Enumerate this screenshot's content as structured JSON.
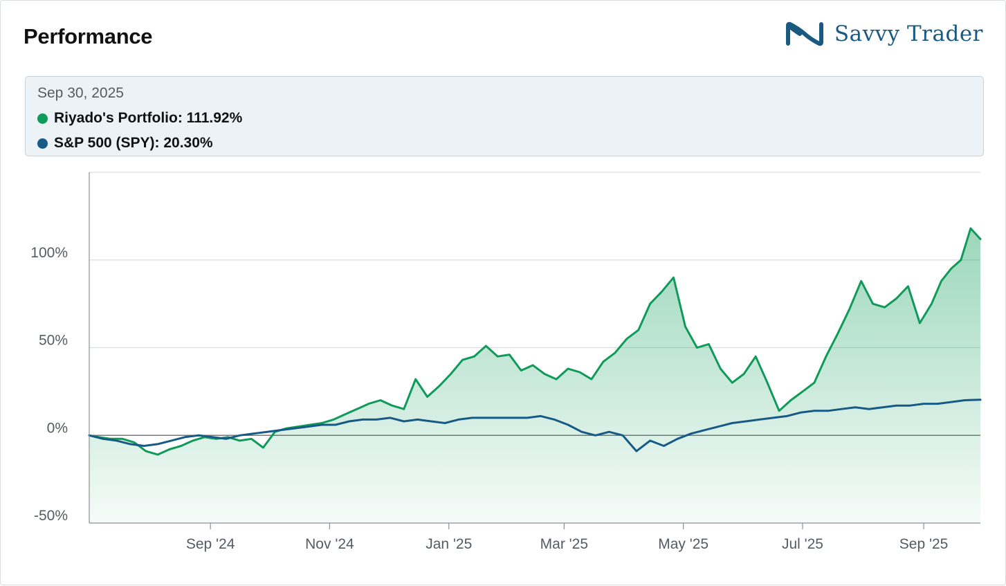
{
  "header": {
    "title": "Performance",
    "brand": "Savvy Trader"
  },
  "tooltip": {
    "date": "Sep 30, 2025",
    "rows": [
      {
        "label": "Riyado's Portfolio: 111.92%"
      },
      {
        "label": "S&P 500 (SPY): 20.30%"
      }
    ]
  },
  "colors": {
    "portfolio": "#0f9a5a",
    "benchmark": "#175a86",
    "fill": "#12a05e",
    "grid": "#d9dde2",
    "zero_line": "#777777",
    "brand": "#1b5a80"
  },
  "chart_data": {
    "type": "area",
    "x_axis": {
      "type": "date",
      "range": [
        "2024-07-01",
        "2025-09-30"
      ],
      "ticks": [
        {
          "date": "2024-09-01",
          "label": "Sep '24"
        },
        {
          "date": "2024-11-01",
          "label": "Nov '24"
        },
        {
          "date": "2025-01-01",
          "label": "Jan '25"
        },
        {
          "date": "2025-03-01",
          "label": "Mar '25"
        },
        {
          "date": "2025-05-01",
          "label": "May '25"
        },
        {
          "date": "2025-07-01",
          "label": "Jul '25"
        },
        {
          "date": "2025-09-01",
          "label": "Sep '25"
        }
      ]
    },
    "y_axis": {
      "range": [
        -50,
        150
      ],
      "ticks": [
        {
          "value": 100,
          "label": "100%"
        },
        {
          "value": 50,
          "label": "50%"
        },
        {
          "value": 0,
          "label": "0%"
        },
        {
          "value": -50,
          "label": "-50%"
        }
      ],
      "grid": true
    },
    "legend": "top (tooltip panel)",
    "series": [
      {
        "name": "Riyado's Portfolio",
        "unit": "%",
        "points": [
          [
            "2024-07-01",
            0
          ],
          [
            "2024-07-06",
            -1
          ],
          [
            "2024-07-12",
            -2
          ],
          [
            "2024-07-18",
            -2
          ],
          [
            "2024-07-24",
            -4
          ],
          [
            "2024-07-30",
            -9
          ],
          [
            "2024-08-05",
            -11
          ],
          [
            "2024-08-11",
            -8
          ],
          [
            "2024-08-17",
            -6
          ],
          [
            "2024-08-23",
            -3
          ],
          [
            "2024-08-29",
            -1
          ],
          [
            "2024-09-04",
            -2
          ],
          [
            "2024-09-10",
            -1
          ],
          [
            "2024-09-16",
            -3
          ],
          [
            "2024-09-22",
            -2
          ],
          [
            "2024-09-28",
            -7
          ],
          [
            "2024-10-04",
            2
          ],
          [
            "2024-10-10",
            4
          ],
          [
            "2024-10-16",
            5
          ],
          [
            "2024-10-22",
            6
          ],
          [
            "2024-10-28",
            7
          ],
          [
            "2024-11-03",
            9
          ],
          [
            "2024-11-09",
            12
          ],
          [
            "2024-11-15",
            15
          ],
          [
            "2024-11-21",
            18
          ],
          [
            "2024-11-27",
            20
          ],
          [
            "2024-12-03",
            17
          ],
          [
            "2024-12-09",
            15
          ],
          [
            "2024-12-15",
            32
          ],
          [
            "2024-12-21",
            22
          ],
          [
            "2024-12-27",
            28
          ],
          [
            "2025-01-02",
            35
          ],
          [
            "2025-01-08",
            43
          ],
          [
            "2025-01-14",
            45
          ],
          [
            "2025-01-20",
            51
          ],
          [
            "2025-01-26",
            45
          ],
          [
            "2025-02-01",
            46
          ],
          [
            "2025-02-07",
            37
          ],
          [
            "2025-02-13",
            40
          ],
          [
            "2025-02-19",
            35
          ],
          [
            "2025-02-25",
            32
          ],
          [
            "2025-03-03",
            38
          ],
          [
            "2025-03-09",
            36
          ],
          [
            "2025-03-15",
            32
          ],
          [
            "2025-03-21",
            42
          ],
          [
            "2025-03-27",
            47
          ],
          [
            "2025-04-02",
            55
          ],
          [
            "2025-04-08",
            60
          ],
          [
            "2025-04-14",
            75
          ],
          [
            "2025-04-20",
            82
          ],
          [
            "2025-04-26",
            90
          ],
          [
            "2025-05-02",
            62
          ],
          [
            "2025-05-08",
            50
          ],
          [
            "2025-05-14",
            52
          ],
          [
            "2025-05-20",
            38
          ],
          [
            "2025-05-26",
            30
          ],
          [
            "2025-06-01",
            35
          ],
          [
            "2025-06-07",
            45
          ],
          [
            "2025-06-13",
            30
          ],
          [
            "2025-06-19",
            14
          ],
          [
            "2025-06-25",
            20
          ],
          [
            "2025-07-01",
            25
          ],
          [
            "2025-07-07",
            30
          ],
          [
            "2025-07-13",
            45
          ],
          [
            "2025-07-19",
            58
          ],
          [
            "2025-07-25",
            72
          ],
          [
            "2025-07-31",
            88
          ],
          [
            "2025-08-06",
            75
          ],
          [
            "2025-08-12",
            73
          ],
          [
            "2025-08-18",
            78
          ],
          [
            "2025-08-24",
            85
          ],
          [
            "2025-08-30",
            64
          ],
          [
            "2025-09-05",
            75
          ],
          [
            "2025-09-10",
            88
          ],
          [
            "2025-09-15",
            95
          ],
          [
            "2025-09-20",
            100
          ],
          [
            "2025-09-25",
            118
          ],
          [
            "2025-09-30",
            111.92
          ]
        ]
      },
      {
        "name": "S&P 500 (SPY)",
        "unit": "%",
        "points": [
          [
            "2024-07-01",
            0
          ],
          [
            "2024-07-08",
            -2
          ],
          [
            "2024-07-15",
            -3
          ],
          [
            "2024-07-22",
            -5
          ],
          [
            "2024-07-29",
            -6
          ],
          [
            "2024-08-05",
            -5
          ],
          [
            "2024-08-12",
            -3
          ],
          [
            "2024-08-19",
            -1
          ],
          [
            "2024-08-26",
            0
          ],
          [
            "2024-09-02",
            -1
          ],
          [
            "2024-09-09",
            -2
          ],
          [
            "2024-09-16",
            0
          ],
          [
            "2024-09-23",
            1
          ],
          [
            "2024-09-30",
            2
          ],
          [
            "2024-10-07",
            3
          ],
          [
            "2024-10-14",
            4
          ],
          [
            "2024-10-21",
            5
          ],
          [
            "2024-10-28",
            6
          ],
          [
            "2024-11-04",
            6
          ],
          [
            "2024-11-11",
            8
          ],
          [
            "2024-11-18",
            9
          ],
          [
            "2024-11-25",
            9
          ],
          [
            "2024-12-02",
            10
          ],
          [
            "2024-12-09",
            8
          ],
          [
            "2024-12-16",
            9
          ],
          [
            "2024-12-23",
            8
          ],
          [
            "2024-12-30",
            7
          ],
          [
            "2025-01-06",
            9
          ],
          [
            "2025-01-13",
            10
          ],
          [
            "2025-01-20",
            10
          ],
          [
            "2025-01-27",
            10
          ],
          [
            "2025-02-03",
            10
          ],
          [
            "2025-02-10",
            10
          ],
          [
            "2025-02-17",
            11
          ],
          [
            "2025-02-24",
            9
          ],
          [
            "2025-03-03",
            6
          ],
          [
            "2025-03-10",
            2
          ],
          [
            "2025-03-17",
            0
          ],
          [
            "2025-03-24",
            2
          ],
          [
            "2025-03-31",
            0
          ],
          [
            "2025-04-07",
            -9
          ],
          [
            "2025-04-14",
            -3
          ],
          [
            "2025-04-21",
            -6
          ],
          [
            "2025-04-28",
            -2
          ],
          [
            "2025-05-05",
            1
          ],
          [
            "2025-05-12",
            3
          ],
          [
            "2025-05-19",
            5
          ],
          [
            "2025-05-26",
            7
          ],
          [
            "2025-06-02",
            8
          ],
          [
            "2025-06-09",
            9
          ],
          [
            "2025-06-16",
            10
          ],
          [
            "2025-06-23",
            11
          ],
          [
            "2025-06-30",
            13
          ],
          [
            "2025-07-07",
            14
          ],
          [
            "2025-07-14",
            14
          ],
          [
            "2025-07-21",
            15
          ],
          [
            "2025-07-28",
            16
          ],
          [
            "2025-08-04",
            15
          ],
          [
            "2025-08-11",
            16
          ],
          [
            "2025-08-18",
            17
          ],
          [
            "2025-08-25",
            17
          ],
          [
            "2025-09-01",
            18
          ],
          [
            "2025-09-08",
            18
          ],
          [
            "2025-09-15",
            19
          ],
          [
            "2025-09-22",
            20
          ],
          [
            "2025-09-30",
            20.3
          ]
        ]
      }
    ]
  }
}
